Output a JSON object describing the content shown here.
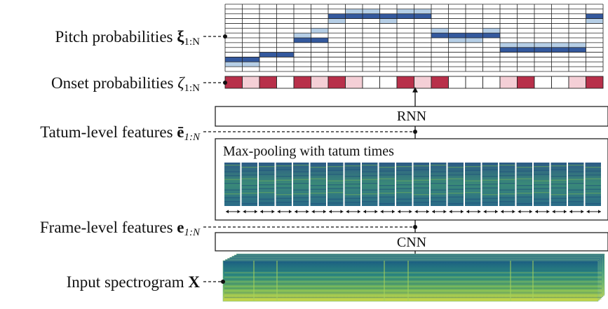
{
  "labels": {
    "pitch": {
      "text": "Pitch probabilities ",
      "symbol": "ξ",
      "subscript": "1:N"
    },
    "onset": {
      "text": "Onset probabilities ",
      "symbol": "ζ",
      "subscript": "1:N"
    },
    "tatum": {
      "text": "Tatum-level features ",
      "symbol": "ē",
      "subscript": "1:N"
    },
    "frame": {
      "text": "Frame-level features ",
      "symbol": "e",
      "subscript": "1:N"
    },
    "input": {
      "text": "Input spectrogram ",
      "symbol": "X",
      "subscript": ""
    }
  },
  "blocks": {
    "rnn": "RNN",
    "cnn": "CNN",
    "maxpool": "Max-pooling with tatum times"
  },
  "onset_probabilities": [
    "high",
    "low",
    "high",
    "none",
    "high",
    "low",
    "high",
    "low",
    "none",
    "none",
    "high",
    "low",
    "high",
    "none",
    "none",
    "none",
    "low",
    "high",
    "none",
    "none",
    "low",
    "high",
    "none",
    "none"
  ],
  "pitch_path": [
    {
      "row": 11,
      "soft": [
        12
      ]
    },
    {
      "row": 11,
      "soft": [
        12
      ]
    },
    {
      "row": 10,
      "soft": []
    },
    {
      "row": 10,
      "soft": []
    },
    {
      "row": 7,
      "soft": [
        6
      ]
    },
    {
      "row": 7,
      "soft": [
        5
      ]
    },
    {
      "row": 2,
      "soft": [
        3
      ]
    },
    {
      "row": 2,
      "soft": [
        1
      ]
    },
    {
      "row": 2,
      "soft": [
        1
      ]
    },
    {
      "row": 2,
      "soft": [
        3
      ]
    },
    {
      "row": 2,
      "soft": [
        1
      ]
    },
    {
      "row": 2,
      "soft": [
        1
      ]
    },
    {
      "row": 6,
      "soft": [
        5
      ]
    },
    {
      "row": 6,
      "soft": [
        7
      ]
    },
    {
      "row": 6,
      "soft": [
        7
      ]
    },
    {
      "row": 6,
      "soft": [
        5
      ]
    },
    {
      "row": 9,
      "soft": [
        8
      ]
    },
    {
      "row": 9,
      "soft": [
        8
      ]
    },
    {
      "row": 9,
      "soft": [
        8
      ]
    },
    {
      "row": 9,
      "soft": [
        8
      ]
    },
    {
      "row": 9,
      "soft": [
        8
      ]
    },
    {
      "row": 2,
      "soft": [
        3
      ]
    },
    {
      "row": 2,
      "soft": [
        3
      ]
    },
    {
      "row": 2,
      "soft": [
        3
      ]
    }
  ],
  "colors": {
    "onset_high": "#b8304a",
    "onset_low": "#f4cfd6",
    "pitch_main": "#34599e",
    "pitch_soft": "#b6cfe7",
    "feature_dark": "#2f4e86",
    "feature_mid": "#2d8a86",
    "feature_light": "#d7dd2e"
  }
}
